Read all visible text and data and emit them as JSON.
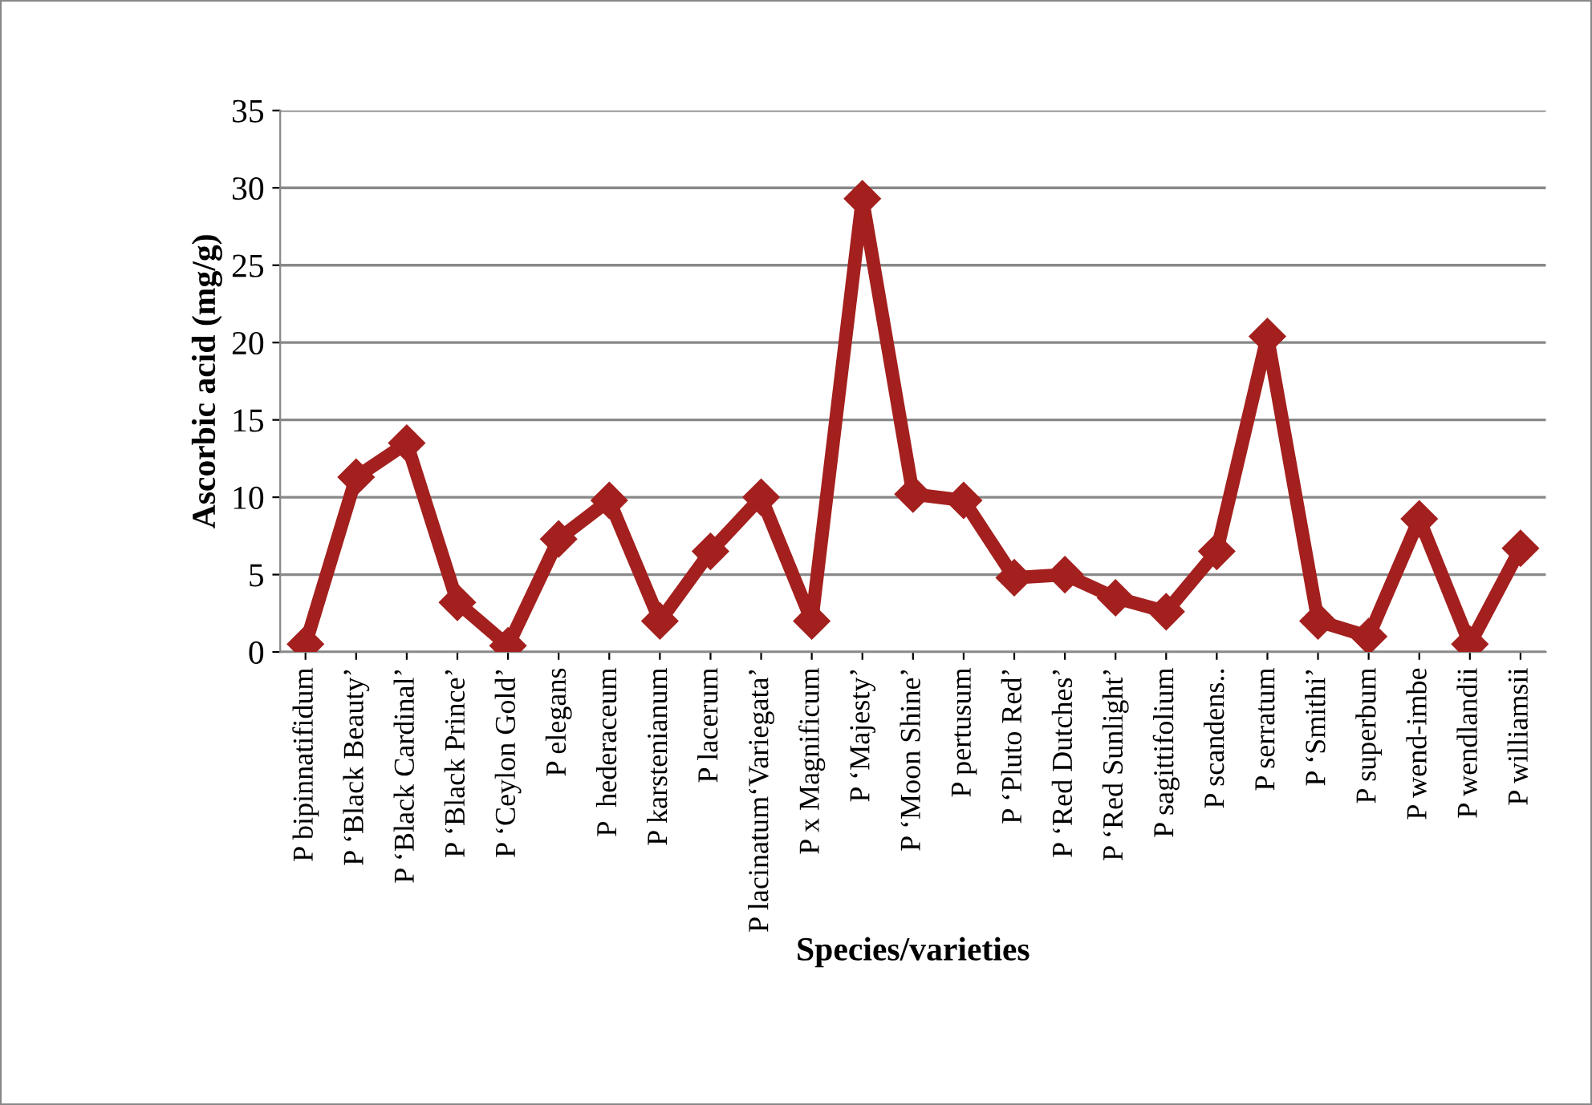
{
  "chart_data": {
    "type": "line",
    "xlabel": "Species/varieties",
    "ylabel": "Ascorbic acid (mg/g)",
    "categories": [
      "P bipinnatifidum",
      "P ‘Black Beauty’",
      "P ‘Black Cardinal’",
      "P ‘Black Prince’",
      "P ‘Ceylon Gold’",
      "P elegans",
      "P  hederaceum",
      "P karstenianum",
      "P lacerum",
      "P lacinatum‘Variegata’",
      "P x Magnificum",
      "P ‘Majesty’",
      "P ‘Moon Shine’",
      "P pertusum",
      "P ‘Pluto Red’",
      "P ‘Red Dutches’",
      "P ‘Red Sunlight’",
      "P sagittifolium",
      "P scandens..",
      "P serratum",
      "P ‘Smithi’",
      "P superbum",
      "P wend-imbe",
      "P wendlandii",
      "P williamsii"
    ],
    "series": [
      {
        "color": "#a3201e",
        "values": [
          0.5,
          11.3,
          13.5,
          3.2,
          0.4,
          7.3,
          9.8,
          2.0,
          6.5,
          10.0,
          2.0,
          29.3,
          10.2,
          9.8,
          4.8,
          5.0,
          3.5,
          2.6,
          6.5,
          20.4,
          2.0,
          1.0,
          8.6,
          0.5,
          6.7
        ]
      }
    ],
    "ylim": [
      0,
      35
    ],
    "yticks": [
      0,
      5,
      10,
      15,
      20,
      25,
      30,
      35
    ],
    "grid": "y",
    "marker": "diamond",
    "line_style": "solid"
  }
}
